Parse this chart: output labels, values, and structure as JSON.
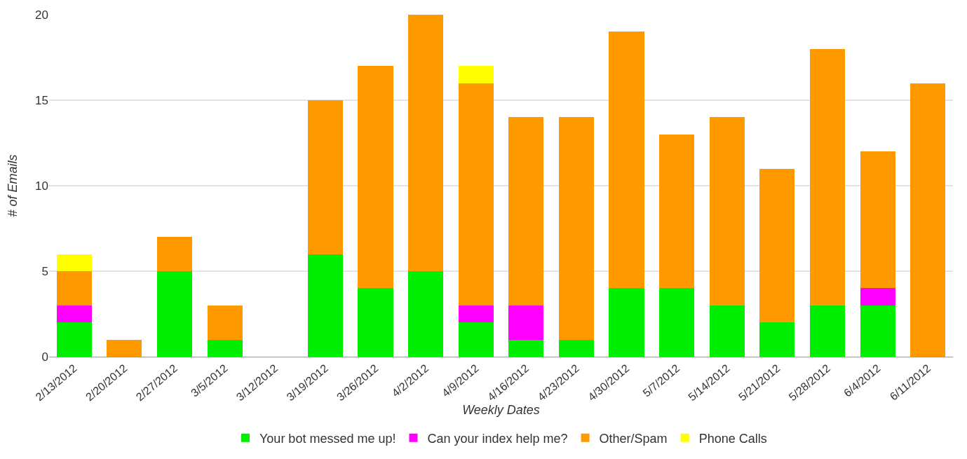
{
  "chart_data": {
    "type": "bar",
    "stacked": true,
    "xlabel": "Weekly Dates",
    "ylabel": "# of Emails",
    "categories": [
      "2/13/2012",
      "2/20/2012",
      "2/27/2012",
      "3/5/2012",
      "3/12/2012",
      "3/19/2012",
      "3/26/2012",
      "4/2/2012",
      "4/9/2012",
      "4/16/2012",
      "4/23/2012",
      "4/30/2012",
      "5/7/2012",
      "5/14/2012",
      "5/21/2012",
      "5/28/2012",
      "6/4/2012",
      "6/11/2012"
    ],
    "series": [
      {
        "name": "Your bot messed me up!",
        "color": "#00ee00",
        "values": [
          2,
          0,
          5,
          1,
          0,
          6,
          4,
          5,
          2,
          1,
          1,
          4,
          4,
          3,
          2,
          3,
          3,
          0
        ]
      },
      {
        "name": "Can your index help me?",
        "color": "#ff00ff",
        "values": [
          1,
          0,
          0,
          0,
          0,
          0,
          0,
          0,
          1,
          2,
          0,
          0,
          0,
          0,
          0,
          0,
          1,
          0
        ]
      },
      {
        "name": "Other/Spam",
        "color": "#ff9900",
        "values": [
          2,
          1,
          2,
          2,
          0,
          9,
          13,
          15,
          13,
          11,
          13,
          15,
          9,
          11,
          9,
          15,
          8,
          16
        ]
      },
      {
        "name": "Phone Calls",
        "color": "#ffff00",
        "values": [
          1,
          0,
          0,
          0,
          0,
          0,
          0,
          0,
          1,
          0,
          0,
          0,
          0,
          0,
          0,
          0,
          0,
          0
        ]
      }
    ],
    "ylim": [
      0,
      20
    ],
    "yticks": [
      0,
      5,
      10,
      15,
      20
    ],
    "grid": "y",
    "legend": "bottom"
  }
}
